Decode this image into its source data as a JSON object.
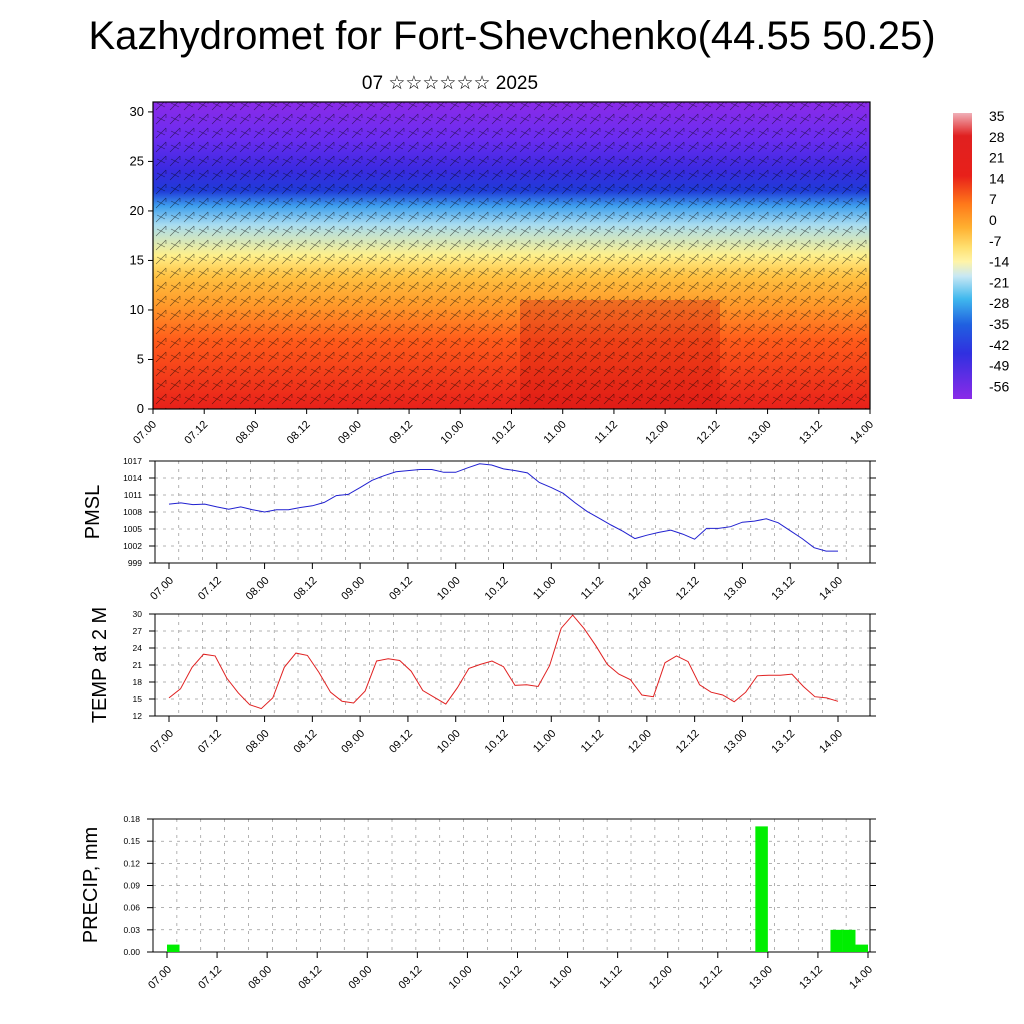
{
  "title": "Kazhydromet for Fort-Shevchenko(44.55 50.25)",
  "subtitle": "07 ☆☆☆☆☆☆ 2025",
  "chart_data": [
    {
      "type": "heatmap",
      "description_free": true,
      "x_tick_labels": [
        "07.00",
        "07.12",
        "08.00",
        "08.12",
        "09.00",
        "09.12",
        "10.00",
        "10.12",
        "11.00",
        "11.12",
        "12.00",
        "12.12",
        "13.00",
        "13.12",
        "14.00"
      ],
      "y_ticks": [
        0,
        5,
        10,
        15,
        20,
        25,
        30
      ],
      "ylim": [
        0,
        31
      ],
      "colorbar_labels": [
        "35",
        "28",
        "21",
        "14",
        "7",
        "0",
        "-7",
        "-14",
        "-21",
        "-28",
        "-35",
        "-42",
        "-49",
        "-56"
      ],
      "colors": {
        "warm": "#e8201a",
        "orange": "#ff9a2a",
        "yellow": "#ffee82",
        "light_blue": "#9fd6f0",
        "blue": "#1f3bd8",
        "violet": "#8a2be8"
      }
    },
    {
      "type": "line",
      "ylabel": "PMSL",
      "x_tick_labels": [
        "07.00",
        "07.12",
        "08.00",
        "08.12",
        "09.00",
        "09.12",
        "10.00",
        "10.12",
        "11.00",
        "11.12",
        "12.00",
        "12.12",
        "13.00",
        "13.12",
        "14.00"
      ],
      "y_ticks": [
        "1017",
        "1014",
        "1011",
        "1008",
        "1005",
        "1002",
        "999"
      ],
      "ylim": [
        999,
        1017
      ],
      "color": "#2020d0",
      "values": [
        1009.4,
        1009.6,
        1009.3,
        1009.4,
        1008.9,
        1008.5,
        1008.9,
        1008.4,
        1008.0,
        1008.4,
        1008.4,
        1008.8,
        1009.1,
        1009.7,
        1010.9,
        1011.1,
        1012.3,
        1013.6,
        1014.4,
        1015.1,
        1015.3,
        1015.5,
        1015.5,
        1015.0,
        1015.0,
        1015.8,
        1016.5,
        1016.3,
        1015.6,
        1015.3,
        1014.9,
        1013.2,
        1012.3,
        1011.3,
        1009.6,
        1008.1,
        1006.9,
        1005.7,
        1004.6,
        1003.3,
        1003.9,
        1004.4,
        1004.8,
        1004.1,
        1003.2,
        1005.1,
        1005.1,
        1005.4,
        1006.2,
        1006.4,
        1006.8,
        1006.1,
        1004.7,
        1003.3,
        1001.7,
        1001.1,
        1001.1
      ]
    },
    {
      "type": "line",
      "ylabel": "TEMP at 2 M",
      "x_tick_labels": [
        "07.00",
        "07.12",
        "08.00",
        "08.12",
        "09.00",
        "09.12",
        "10.00",
        "10.12",
        "11.00",
        "11.12",
        "12.00",
        "12.12",
        "13.00",
        "13.12",
        "14.00"
      ],
      "y_ticks": [
        "30",
        "27",
        "24",
        "21",
        "18",
        "15",
        "12"
      ],
      "ylim": [
        12,
        30
      ],
      "color": "#e02020",
      "values": [
        15.2,
        16.8,
        20.6,
        22.9,
        22.6,
        18.7,
        16.1,
        14.0,
        13.3,
        15.2,
        20.6,
        23.1,
        22.7,
        19.7,
        16.2,
        14.6,
        14.3,
        16.4,
        21.7,
        22.1,
        21.8,
        19.9,
        16.5,
        15.3,
        14.1,
        17.0,
        20.4,
        21.1,
        21.7,
        20.7,
        17.4,
        17.5,
        17.2,
        20.9,
        27.5,
        29.8,
        27.4,
        24.4,
        21.1,
        19.4,
        18.4,
        15.7,
        15.4,
        21.4,
        22.6,
        21.6,
        17.5,
        16.2,
        15.7,
        14.5,
        16.2,
        19.1,
        19.2,
        19.2,
        19.4,
        17.2,
        15.4,
        15.2,
        14.6
      ]
    },
    {
      "type": "bar",
      "ylabel": "PRECIP, mm",
      "x_tick_labels": [
        "07.00",
        "07.12",
        "08.00",
        "08.12",
        "09.00",
        "09.12",
        "10.00",
        "10.12",
        "11.00",
        "11.12",
        "12.00",
        "12.12",
        "13.00",
        "13.12",
        "14.00"
      ],
      "y_ticks": [
        "0.18",
        "0.15",
        "0.12",
        "0.09",
        "0.06",
        "0.03",
        "0.00"
      ],
      "ylim": [
        0,
        0.18
      ],
      "color": "#00ee00",
      "bars": [
        {
          "x_hour": 0,
          "value": 0.01
        },
        {
          "x_hour": 141,
          "value": 0.17
        },
        {
          "x_hour": 159,
          "value": 0.03
        },
        {
          "x_hour": 162,
          "value": 0.03
        },
        {
          "x_hour": 165,
          "value": 0.01
        }
      ]
    }
  ]
}
